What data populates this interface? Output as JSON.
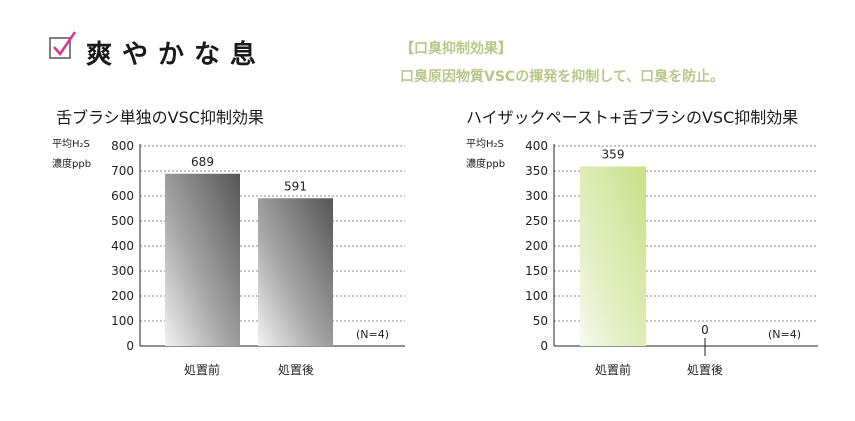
{
  "header": {
    "title": "爽やかな息",
    "effect_heading": "【口臭抑制効果】",
    "effect_description": "口臭原因物質VSCの揮発を抑制して、口臭を防止。",
    "accent_color": "#e0338a",
    "icon": "checkbox-check-icon"
  },
  "chart_data": [
    {
      "type": "bar",
      "title": "舌ブラシ単独のVSC抑制効果",
      "ylabel_lines": [
        "平均H₂S",
        "濃度ppb"
      ],
      "categories": [
        "処置前",
        "処置後"
      ],
      "values": [
        689,
        591
      ],
      "value_labels": [
        "689",
        "591"
      ],
      "ylim": [
        0,
        800
      ],
      "yticks": [
        0,
        100,
        200,
        300,
        400,
        500,
        600,
        700,
        800
      ],
      "ytick_labels": [
        "0",
        "100",
        "200",
        "300",
        "400",
        "500",
        "600",
        "700",
        "800"
      ],
      "grid": true,
      "annotation": "(N=4)",
      "color": "#555555"
    },
    {
      "type": "bar",
      "title": "ハイザックペースト+舌ブラシのVSC抑制効果",
      "ylabel_lines": [
        "平均H₂S",
        "濃度ppb"
      ],
      "categories": [
        "処置前",
        "処置後"
      ],
      "values": [
        359,
        0
      ],
      "value_labels": [
        "359",
        "0"
      ],
      "ylim": [
        0,
        400
      ],
      "yticks": [
        0,
        50,
        100,
        150,
        200,
        250,
        300,
        350,
        400
      ],
      "ytick_labels": [
        "0",
        "50",
        "100",
        "150",
        "200",
        "250",
        "300",
        "350",
        "400"
      ],
      "grid": true,
      "annotation": "(N=4)",
      "color": "#c8e08a"
    }
  ]
}
